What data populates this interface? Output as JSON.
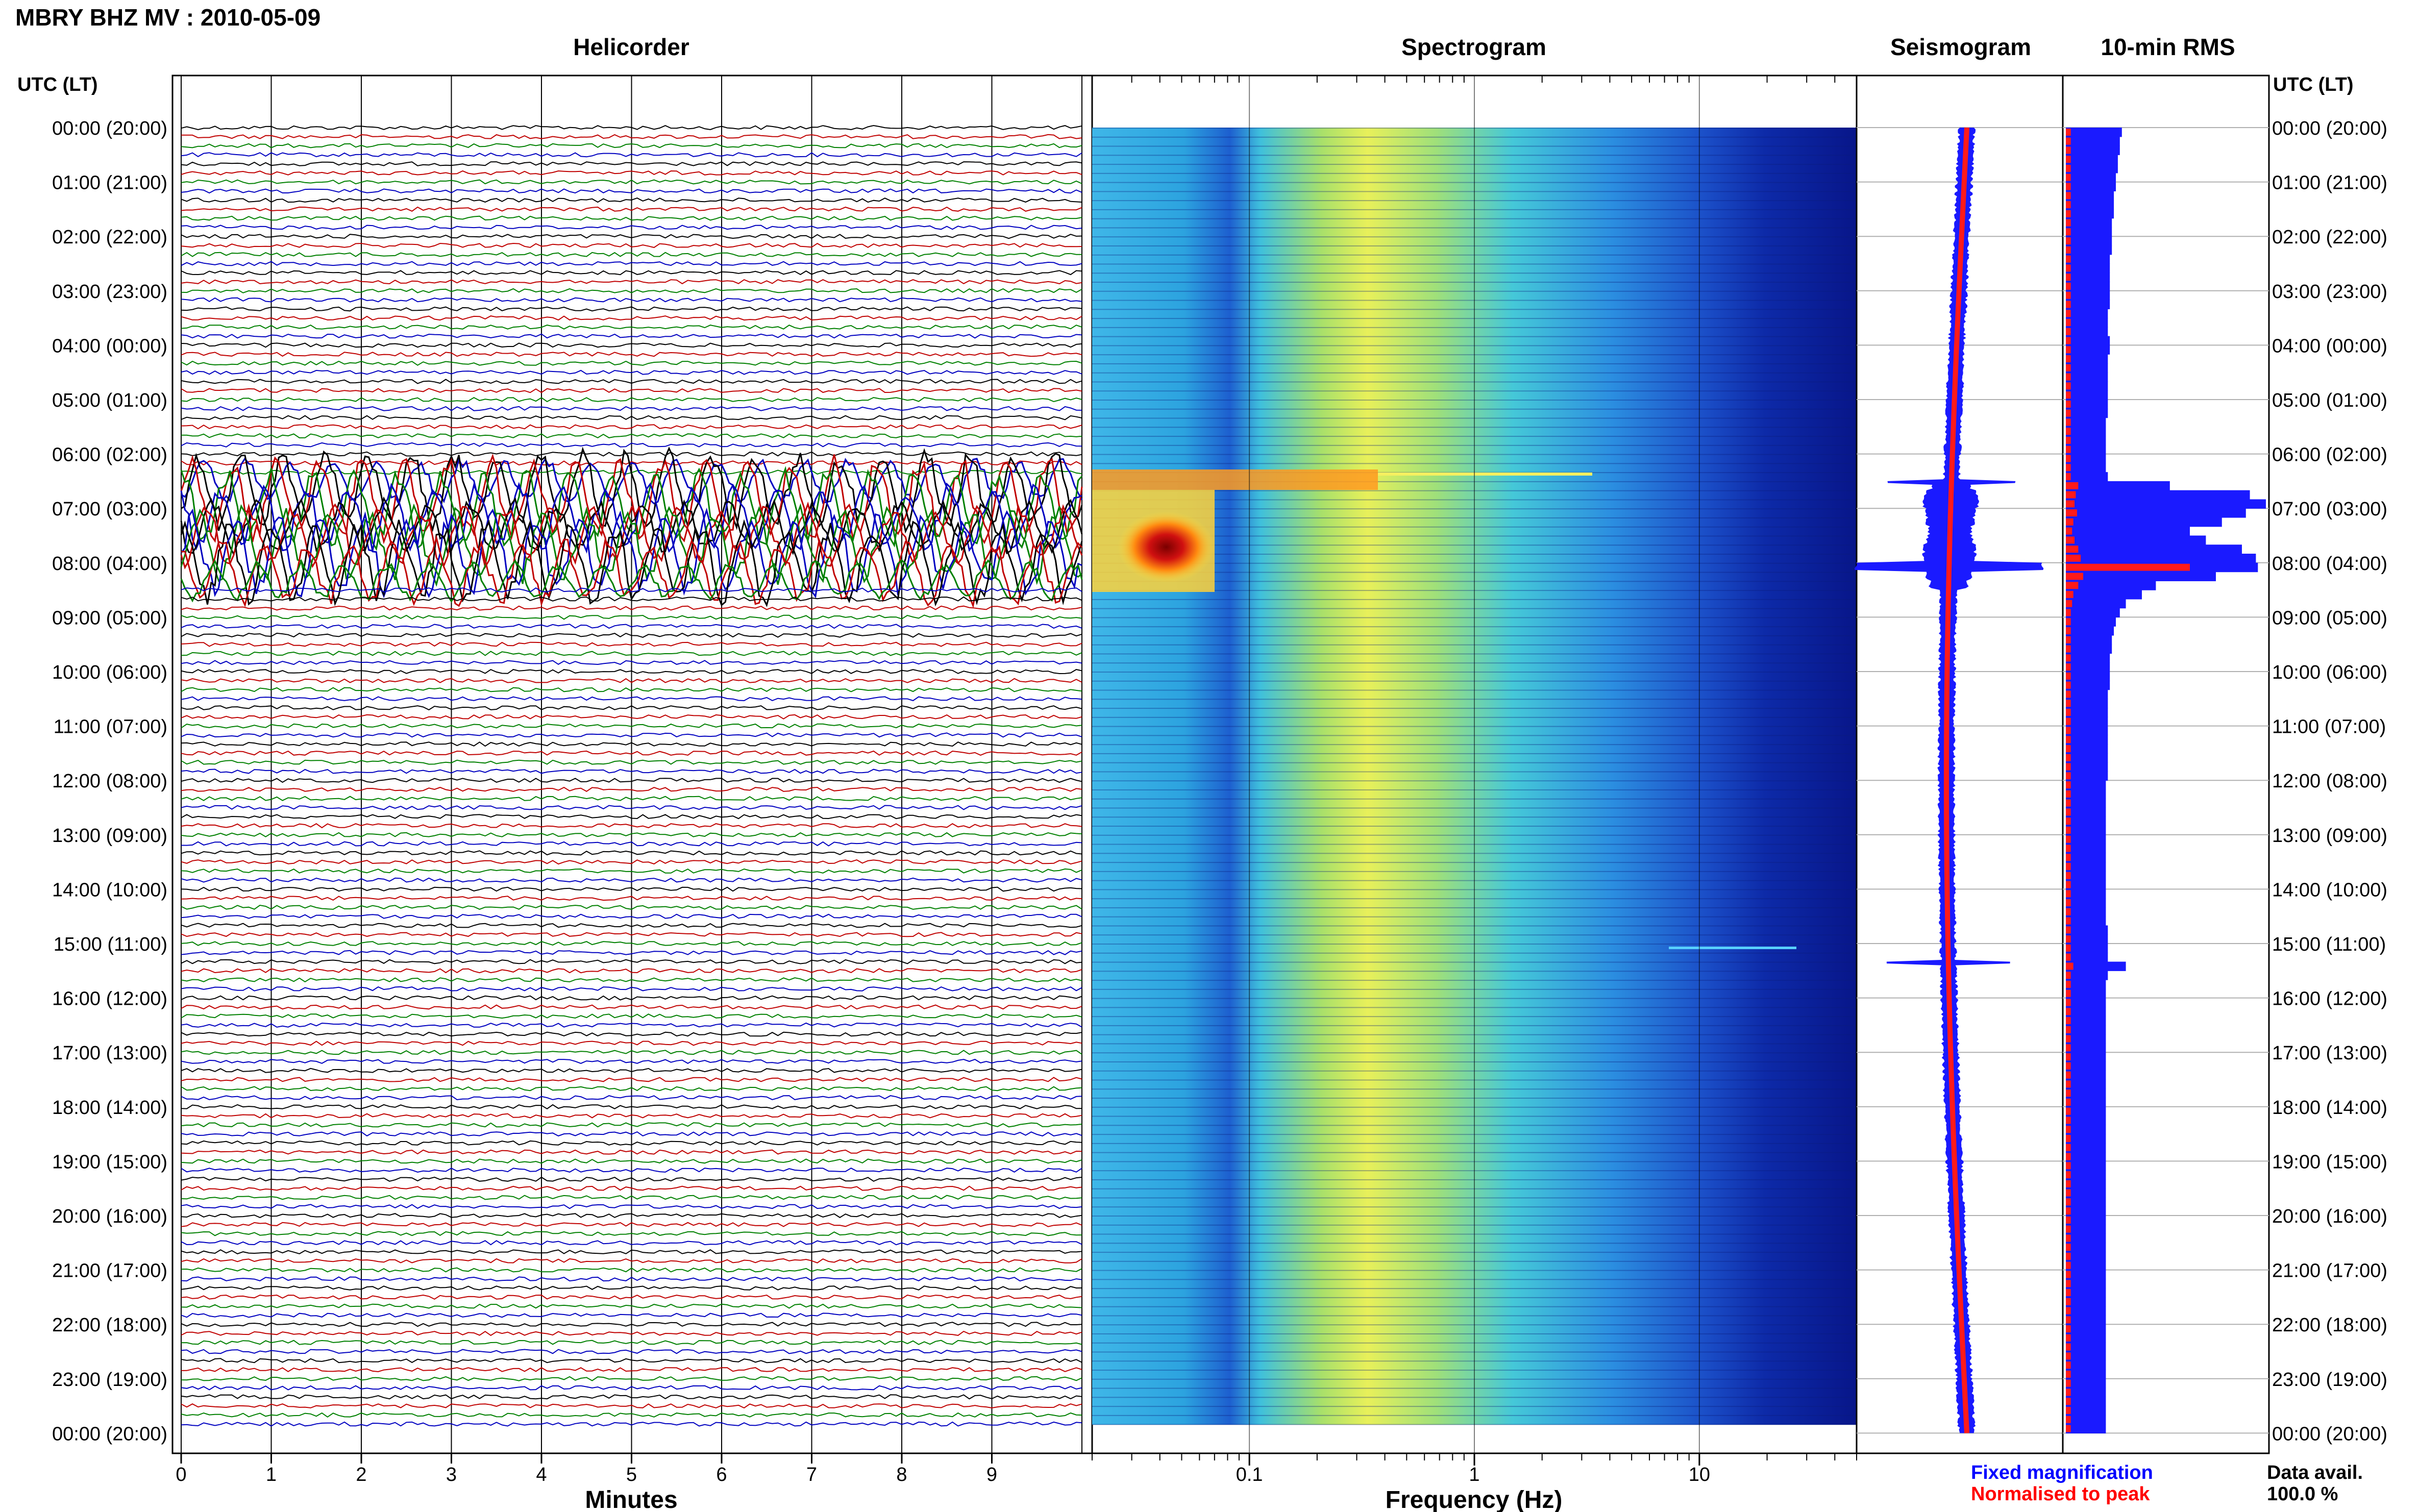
{
  "header": {
    "title": "MBRY BHZ MV : 2010-05-09",
    "utc_label_left": "UTC (LT)",
    "utc_label_right": "UTC (LT)"
  },
  "panels": {
    "helicorder_title": "Helicorder",
    "spectrogram_title": "Spectrogram",
    "seismogram_title": "Seismogram",
    "rms_title": "10-min RMS"
  },
  "time_labels": [
    "00:00 (20:00)",
    "01:00 (21:00)",
    "02:00 (22:00)",
    "03:00 (23:00)",
    "04:00 (00:00)",
    "05:00 (01:00)",
    "06:00 (02:00)",
    "07:00 (03:00)",
    "08:00 (04:00)",
    "09:00 (05:00)",
    "10:00 (06:00)",
    "11:00 (07:00)",
    "12:00 (08:00)",
    "13:00 (09:00)",
    "14:00 (10:00)",
    "15:00 (11:00)",
    "16:00 (12:00)",
    "17:00 (13:00)",
    "18:00 (14:00)",
    "19:00 (15:00)",
    "20:00 (16:00)",
    "21:00 (17:00)",
    "22:00 (18:00)",
    "23:00 (19:00)",
    "00:00 (20:00)"
  ],
  "helicorder": {
    "xlabel": "Minutes",
    "ticks": [
      "0",
      "1",
      "2",
      "3",
      "4",
      "5",
      "6",
      "7",
      "8",
      "9"
    ],
    "trace_colors": [
      "#000000",
      "#c00000",
      "#008000",
      "#0000c0"
    ]
  },
  "spectrogram": {
    "xlabel": "Frequency (Hz)",
    "ticks": [
      "0.1",
      "1",
      "10"
    ]
  },
  "legend": {
    "fixed": "Fixed magnification",
    "normalised": "Normalised to peak",
    "fixed_color": "#0000ff",
    "normalised_color": "#ff0000"
  },
  "data_availability": {
    "label": "Data avail.",
    "value": "100.0 %"
  },
  "chart_data": [
    {
      "type": "line",
      "title": "Helicorder",
      "xlabel": "Minutes",
      "xlim": [
        0,
        10
      ],
      "rows_per_hour": 6,
      "hours": 24,
      "notes": "Quiet traces except strong long-period oscillation between 06:00 and 08:10 UTC; small events near 14:45 and 15:00 UTC."
    },
    {
      "type": "heatmap",
      "title": "Spectrogram",
      "xlabel": "Frequency (Hz)",
      "xscale": "log",
      "xlim": [
        0.02,
        50
      ],
      "peak_band": {
        "frequency_hz": [
          0.03,
          0.08
        ],
        "time_utc": [
          "07:15",
          "07:55"
        ]
      },
      "line_features_utc": [
        "06:20",
        "15:00"
      ]
    },
    {
      "type": "line",
      "title": "Seismogram",
      "peak_time_utc": "07:30",
      "secondary_peaks_utc": [
        "06:20",
        "15:00"
      ]
    },
    {
      "type": "bar",
      "title": "10-min RMS",
      "series": [
        {
          "name": "Fixed magnification",
          "color": "#0000ff"
        },
        {
          "name": "Normalised to peak",
          "color": "#ff0000"
        }
      ],
      "rms_fixed": [
        0.28,
        0.27,
        0.27,
        0.26,
        0.26,
        0.25,
        0.25,
        0.24,
        0.24,
        0.24,
        0.23,
        0.23,
        0.23,
        0.23,
        0.22,
        0.22,
        0.22,
        0.22,
        0.22,
        0.22,
        0.21,
        0.21,
        0.21,
        0.22,
        0.22,
        0.21,
        0.21,
        0.21,
        0.21,
        0.21,
        0.21,
        0.21,
        0.2,
        0.2,
        0.2,
        0.2,
        0.2,
        0.2,
        0.21,
        0.52,
        0.92,
        1.0,
        0.9,
        0.78,
        0.62,
        0.7,
        0.88,
        0.95,
        0.96,
        0.75,
        0.45,
        0.38,
        0.3,
        0.27,
        0.25,
        0.24,
        0.23,
        0.23,
        0.22,
        0.22,
        0.22,
        0.22,
        0.21,
        0.21,
        0.21,
        0.21,
        0.21,
        0.21,
        0.21,
        0.21,
        0.21,
        0.21,
        0.2,
        0.2,
        0.2,
        0.2,
        0.2,
        0.2,
        0.2,
        0.2,
        0.2,
        0.2,
        0.2,
        0.2,
        0.2,
        0.2,
        0.2,
        0.2,
        0.21,
        0.21,
        0.21,
        0.21,
        0.3,
        0.21,
        0.2,
        0.2,
        0.2,
        0.2,
        0.2,
        0.2,
        0.2,
        0.2,
        0.2,
        0.2,
        0.2,
        0.2,
        0.2,
        0.2,
        0.2,
        0.2,
        0.2,
        0.2,
        0.2,
        0.2,
        0.2,
        0.2,
        0.2,
        0.2,
        0.2,
        0.2,
        0.2,
        0.2,
        0.2,
        0.2,
        0.2,
        0.2,
        0.2,
        0.2,
        0.2,
        0.2,
        0.2,
        0.2,
        0.2,
        0.2,
        0.2,
        0.2,
        0.2,
        0.2,
        0.2,
        0.2,
        0.2,
        0.2,
        0.2,
        0.2,
        0.2,
        0.2,
        0.2,
        0.2,
        0.2,
        0.2
      ],
      "rms_normalised": [
        0.04,
        0.04,
        0.04,
        0.04,
        0.04,
        0.04,
        0.04,
        0.04,
        0.04,
        0.04,
        0.04,
        0.04,
        0.04,
        0.04,
        0.04,
        0.04,
        0.04,
        0.04,
        0.04,
        0.04,
        0.04,
        0.04,
        0.04,
        0.04,
        0.04,
        0.04,
        0.04,
        0.04,
        0.04,
        0.04,
        0.04,
        0.04,
        0.04,
        0.04,
        0.04,
        0.04,
        0.04,
        0.04,
        0.04,
        0.1,
        0.08,
        0.07,
        0.09,
        0.06,
        0.05,
        0.07,
        0.1,
        0.12,
        1.0,
        0.14,
        0.1,
        0.06,
        0.05,
        0.04,
        0.04,
        0.04,
        0.04,
        0.04,
        0.04,
        0.04,
        0.04,
        0.04,
        0.04,
        0.04,
        0.04,
        0.04,
        0.04,
        0.04,
        0.04,
        0.04,
        0.04,
        0.04,
        0.04,
        0.04,
        0.04,
        0.04,
        0.04,
        0.04,
        0.04,
        0.04,
        0.04,
        0.04,
        0.04,
        0.04,
        0.04,
        0.04,
        0.04,
        0.04,
        0.04,
        0.04,
        0.04,
        0.04,
        0.06,
        0.04,
        0.04,
        0.04,
        0.04,
        0.04,
        0.04,
        0.04,
        0.04,
        0.04,
        0.04,
        0.04,
        0.04,
        0.04,
        0.04,
        0.04,
        0.04,
        0.04,
        0.04,
        0.04,
        0.04,
        0.04,
        0.04,
        0.04,
        0.04,
        0.04,
        0.04,
        0.04,
        0.04,
        0.04,
        0.04,
        0.04,
        0.04,
        0.04,
        0.04,
        0.04,
        0.04,
        0.04,
        0.04,
        0.04,
        0.04,
        0.04,
        0.04,
        0.04,
        0.04,
        0.04,
        0.04,
        0.04,
        0.04,
        0.04,
        0.04,
        0.04,
        0.04,
        0.04,
        0.04,
        0.04,
        0.04,
        0.04
      ]
    }
  ]
}
